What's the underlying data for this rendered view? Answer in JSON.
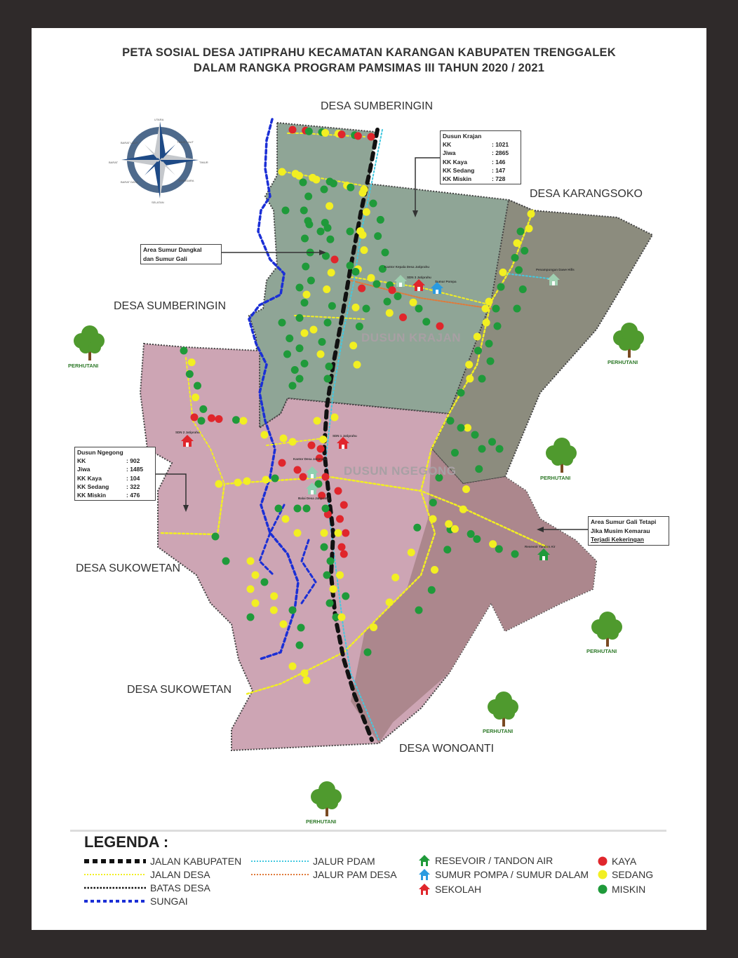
{
  "title": {
    "line1": "PETA SOSIAL DESA JATIPRAHU KECAMATAN KARANGAN KABUPATEN TRENGGALEK",
    "line2": "DALAM RANGKA PROGRAM PAMSIMAS III TAHUN 2020 / 2021"
  },
  "places": {
    "north": "DESA SUMBERINGIN",
    "west": "DESA SUMBERINGIN",
    "east": "DESA KARANGSOKO",
    "sw1": "DESA SUKOWETAN",
    "sw2": "DESA SUKOWETAN",
    "south": "DESA WONOANTI"
  },
  "dusun": {
    "krajan": "DUSUN KRAJAN",
    "ngegong": "DUSUN NGEGONG"
  },
  "compass": {
    "n": "UTARA",
    "ne": "TIMUR LAUT",
    "e": "TIMUR",
    "se": "TENGGARA",
    "s": "SELATAN",
    "sw": "BARAT DAYA",
    "w": "BARAT",
    "nw": "BARAT LAUT"
  },
  "info_krajan": {
    "title": "Dusun Krajan",
    "rows": [
      {
        "k": "KK",
        "v": ": 1021"
      },
      {
        "k": "Jiwa",
        "v": ": 2865"
      },
      {
        "k": "KK Kaya",
        "v": ": 146"
      },
      {
        "k": "KK Sedang",
        "v": ": 147"
      },
      {
        "k": "KK Miskin",
        "v": ": 728"
      }
    ]
  },
  "info_ngegong": {
    "title": "Dusun Ngegong",
    "rows": [
      {
        "k": "KK",
        "v": ": 902"
      },
      {
        "k": "Jiwa",
        "v": ": 1485"
      },
      {
        "k": "KK Kaya",
        "v": ": 104"
      },
      {
        "k": "KK Sedang",
        "v": ": 322"
      },
      {
        "k": "KK Miskin",
        "v": ": 476"
      }
    ]
  },
  "notes": {
    "dangkal": [
      "Area Sumur Dangkal",
      "dan Sumur Gali"
    ],
    "kering": [
      "Area Sumur Gali Tetapi",
      "Jika Musim Kemarau",
      "Terjadi Kekeringan"
    ]
  },
  "facilities": {
    "kantor_kepala": "Kantor Kepala Desa Jatiprahu",
    "sdn3": "SDN 3 Jatiprahu",
    "sumur_pompa": "Sumur Pompa",
    "penampungan": "Penampungan Dawe Hills",
    "sdn2": "SDN 2 Jatiprahu",
    "sdn1": "SDN 1 Jatiprahu",
    "kantor_desa": "Kantor Desa Jatiprahu",
    "balai_desa": "Balai Desa Jatiprahu",
    "resevoir": "Resevoir Tandon Air"
  },
  "perhutani": "PERHUTANI",
  "legend": {
    "heading": "LEGENDA :",
    "items": {
      "jalan_kabupaten": "JALAN KABUPATEN",
      "jalan_desa": "JALAN DESA",
      "batas_desa": "BATAS DESA",
      "sungai": "SUNGAI",
      "jalur_pdam": "JALUR PDAM",
      "jalur_pam_desa": "JALUR PAM DESA",
      "resevoir": "RESEVOIR / TANDON AIR",
      "sumur_pompa": "SUMUR POMPA / SUMUR DALAM",
      "sekolah": "SEKOLAH",
      "kaya": "KAYA",
      "sedang": "SEDANG",
      "miskin": "MISKIN"
    }
  },
  "colors": {
    "frame": "#2f2a2a",
    "krajan": "#8fa596",
    "east_area": "#8c8c7e",
    "ngegong": "#cda5b4",
    "southeast_area": "#a98488",
    "kaya": "#e0262c",
    "sedang": "#f2ef22",
    "miskin": "#1f9a3a",
    "resevoir": "#1f9a3a",
    "sumur_pompa": "#2a9be0",
    "sekolah": "#e0262c",
    "sungai": "#1b2fd6",
    "pdam": "#43c9e0",
    "pam_desa": "#e07a3a"
  }
}
